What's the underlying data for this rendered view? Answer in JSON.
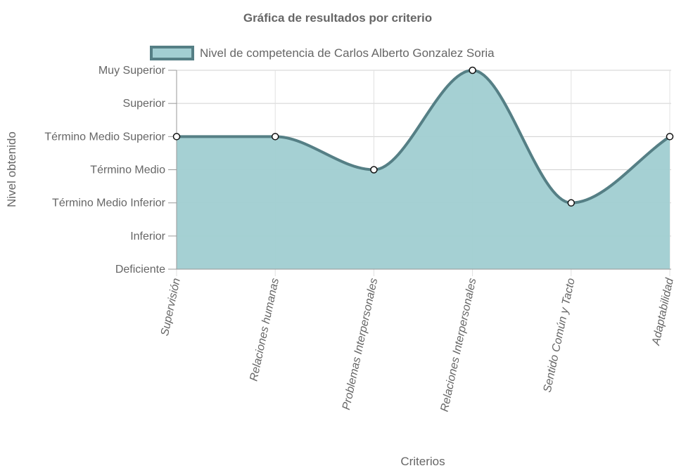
{
  "chart_data": {
    "type": "area",
    "title": "Gráfica de resultados por criterio",
    "xlabel": "Criterios",
    "ylabel": "Nivel obtenido",
    "categories": [
      "Supervisión",
      "Relaciones humanas",
      "Problemas Interpersonales",
      "Relaciones Interpersonales",
      "Sentido Común y Tacto",
      "Adaptabilidad"
    ],
    "y_levels": [
      "Deficiente",
      "Inferior",
      "Término Medio Inferior",
      "Término Medio",
      "Término Medio Superior",
      "Superior",
      "Muy Superior"
    ],
    "series": [
      {
        "name": "Nivel de competencia de Carlos Alberto Gonzalez Soria",
        "values": [
          4,
          4,
          3,
          6,
          2,
          4
        ]
      }
    ],
    "ylim": [
      0,
      6
    ],
    "grid": true,
    "legend_position": "top",
    "colors": {
      "fill": "#a2ced2",
      "stroke": "#557f85",
      "point_fill": "#ffffff",
      "point_stroke": "#111111",
      "grid": "#dddddd",
      "text": "#666666"
    }
  }
}
